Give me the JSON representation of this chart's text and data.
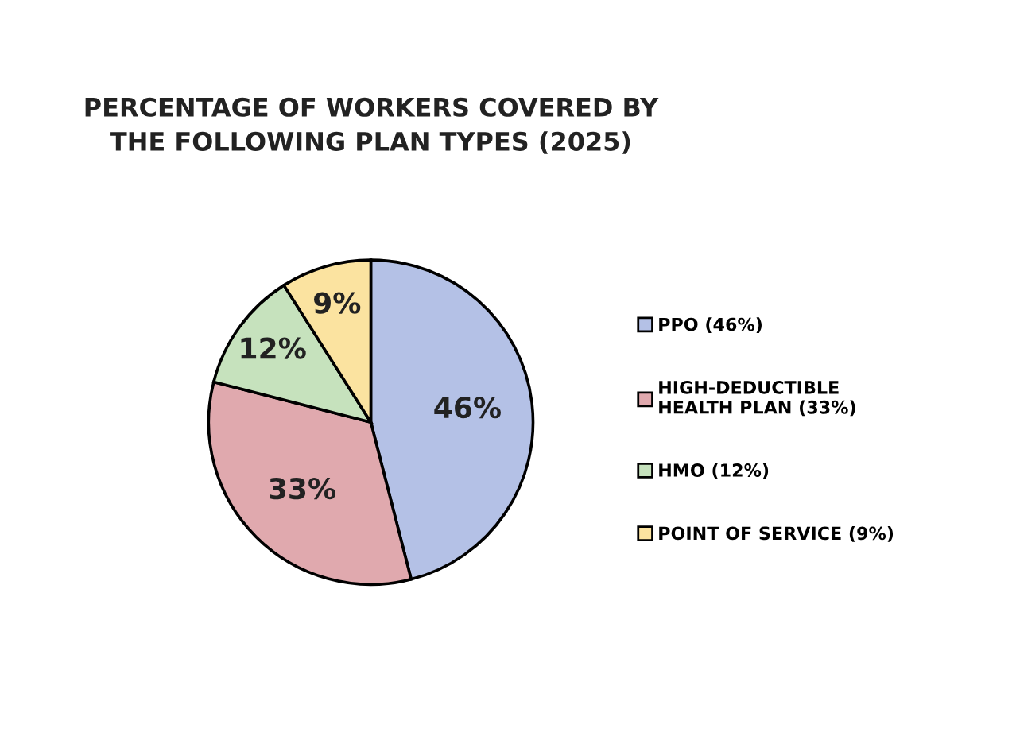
{
  "chart_data": {
    "type": "pie",
    "title": "PERCENTAGE OF WORKERS COVERED BY\nTHE FOLLOWING PLAN TYPES (2025)",
    "categories": [
      "PPO (46%)",
      "HIGH-DEDUCTIBLE\nHEALTH PLAN (33%)",
      "HMO (12%)",
      "POINT OF SERVICE (9%)"
    ],
    "values": [
      46,
      33,
      12,
      9
    ],
    "colors": [
      "#b4c1e6",
      "#e0a9ae",
      "#c6e2bd",
      "#fbe3a0"
    ],
    "value_labels": [
      "46%",
      "33%",
      "12%",
      "9%"
    ],
    "legend": "right"
  }
}
